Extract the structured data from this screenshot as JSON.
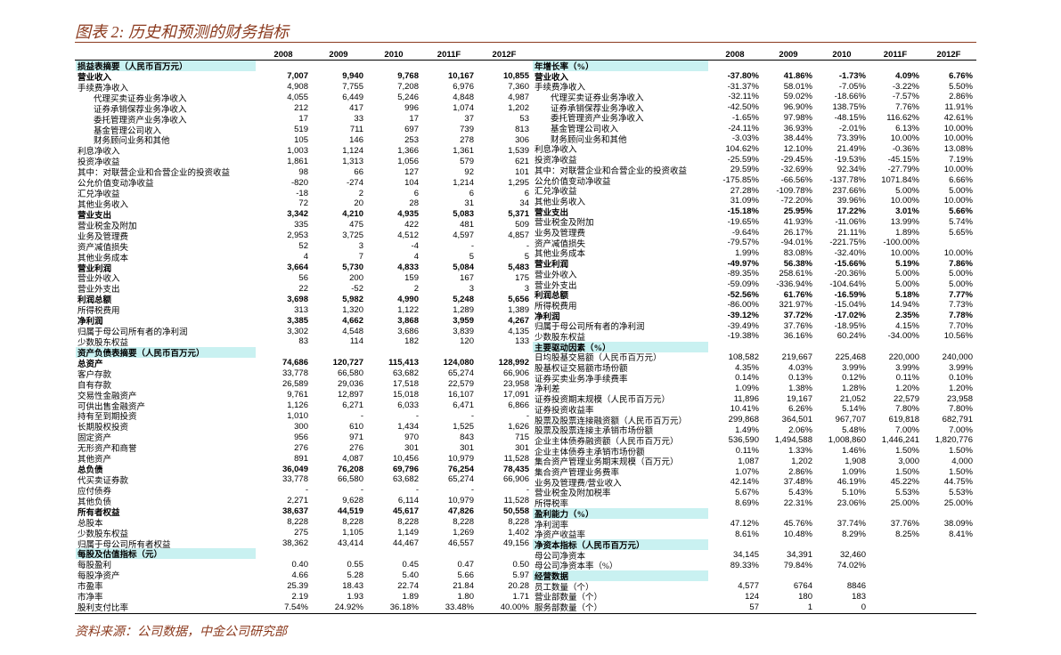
{
  "header": {
    "title": "图表 2: 历史和预测的财务指标"
  },
  "left": {
    "columns": [
      "2008",
      "2009",
      "2010",
      "2011F",
      "2012F"
    ],
    "rows": [
      {
        "label": "损益表摘要（人民币百万元）",
        "kind": "section",
        "values": []
      },
      {
        "label": "营业收入",
        "kind": "bold",
        "values": [
          "7,007",
          "9,940",
          "9,768",
          "10,167",
          "10,855"
        ]
      },
      {
        "label": "手续费净收入",
        "values": [
          "4,908",
          "7,755",
          "7,208",
          "6,976",
          "7,360"
        ]
      },
      {
        "label": "代理买卖证券业务净收入",
        "indent": 1,
        "values": [
          "4,055",
          "6,449",
          "5,246",
          "4,848",
          "4,987"
        ]
      },
      {
        "label": "证券承销保荐业务净收入",
        "indent": 1,
        "values": [
          "212",
          "417",
          "996",
          "1,074",
          "1,202"
        ]
      },
      {
        "label": "委托管理资产业务净收入",
        "indent": 1,
        "values": [
          "17",
          "33",
          "17",
          "37",
          "53"
        ]
      },
      {
        "label": "基金管理公司收入",
        "indent": 1,
        "values": [
          "519",
          "711",
          "697",
          "739",
          "813"
        ]
      },
      {
        "label": "财务顾问业务和其他",
        "indent": 1,
        "values": [
          "105",
          "146",
          "253",
          "278",
          "306"
        ]
      },
      {
        "label": "利息净收入",
        "values": [
          "1,003",
          "1,124",
          "1,366",
          "1,361",
          "1,539"
        ]
      },
      {
        "label": "投资净收益",
        "values": [
          "1,861",
          "1,313",
          "1,056",
          "579",
          "621"
        ]
      },
      {
        "label": "其中：对联营企业和合营企业的投资收益",
        "values": [
          "98",
          "66",
          "127",
          "92",
          "101"
        ]
      },
      {
        "label": "公允价值变动净收益",
        "values": [
          "-820",
          "-274",
          "104",
          "1,214",
          "1,295"
        ]
      },
      {
        "label": "汇兑净收益",
        "values": [
          "-18",
          "2",
          "6",
          "6",
          "6"
        ]
      },
      {
        "label": "其他业务收入",
        "values": [
          "72",
          "20",
          "28",
          "31",
          "34"
        ]
      },
      {
        "label": "营业支出",
        "kind": "bold",
        "values": [
          "3,342",
          "4,210",
          "4,935",
          "5,083",
          "5,371"
        ]
      },
      {
        "label": "营业税金及附加",
        "values": [
          "335",
          "475",
          "422",
          "481",
          "509"
        ]
      },
      {
        "label": "业务及管理费",
        "values": [
          "2,953",
          "3,725",
          "4,512",
          "4,597",
          "4,857"
        ]
      },
      {
        "label": "资产减值损失",
        "values": [
          "52",
          "3",
          "-4",
          "-",
          "-"
        ]
      },
      {
        "label": "其他业务成本",
        "values": [
          "4",
          "7",
          "4",
          "5",
          "5"
        ]
      },
      {
        "label": "营业利润",
        "kind": "bold",
        "values": [
          "3,664",
          "5,730",
          "4,833",
          "5,084",
          "5,483"
        ]
      },
      {
        "label": "营业外收入",
        "values": [
          "56",
          "200",
          "159",
          "167",
          "175"
        ]
      },
      {
        "label": "营业外支出",
        "values": [
          "22",
          "-52",
          "2",
          "3",
          "3"
        ]
      },
      {
        "label": "利润总额",
        "kind": "bold",
        "values": [
          "3,698",
          "5,982",
          "4,990",
          "5,248",
          "5,656"
        ]
      },
      {
        "label": "所得税费用",
        "values": [
          "313",
          "1,320",
          "1,122",
          "1,289",
          "1,389"
        ]
      },
      {
        "label": "净利润",
        "kind": "bold",
        "values": [
          "3,385",
          "4,662",
          "3,868",
          "3,959",
          "4,267"
        ]
      },
      {
        "label": "归属于母公司所有者的净利润",
        "values": [
          "3,302",
          "4,548",
          "3,686",
          "3,839",
          "4,135"
        ]
      },
      {
        "label": "少数股东权益",
        "values": [
          "83",
          "114",
          "182",
          "120",
          "133"
        ]
      },
      {
        "label": "资产负债表摘要（人民币百万元）",
        "kind": "section",
        "values": []
      },
      {
        "label": "总资产",
        "kind": "bold",
        "values": [
          "74,686",
          "120,727",
          "115,413",
          "124,080",
          "128,992"
        ]
      },
      {
        "label": "客户存款",
        "values": [
          "33,778",
          "66,580",
          "63,682",
          "65,274",
          "66,906"
        ]
      },
      {
        "label": "自有存款",
        "values": [
          "26,589",
          "29,036",
          "17,518",
          "22,579",
          "23,958"
        ]
      },
      {
        "label": "交易性金融资产",
        "values": [
          "9,761",
          "12,897",
          "15,018",
          "16,107",
          "17,091"
        ]
      },
      {
        "label": "可供出售金融资产",
        "values": [
          "1,126",
          "6,271",
          "6,033",
          "6,471",
          "6,866"
        ]
      },
      {
        "label": "持有至到期投资",
        "values": [
          "1,010",
          "-",
          "-",
          "-",
          "-"
        ]
      },
      {
        "label": "长期股权投资",
        "values": [
          "300",
          "610",
          "1,434",
          "1,525",
          "1,626"
        ]
      },
      {
        "label": "固定资产",
        "values": [
          "956",
          "971",
          "970",
          "843",
          "715"
        ]
      },
      {
        "label": "无形资产和商誉",
        "values": [
          "276",
          "276",
          "301",
          "301",
          "301"
        ]
      },
      {
        "label": "其他资产",
        "values": [
          "891",
          "4,087",
          "10,456",
          "10,979",
          "11,528"
        ]
      },
      {
        "label": "总负债",
        "kind": "bold",
        "values": [
          "36,049",
          "76,208",
          "69,796",
          "76,254",
          "78,435"
        ]
      },
      {
        "label": "代买卖证券款",
        "values": [
          "33,778",
          "66,580",
          "63,682",
          "65,274",
          "66,906"
        ]
      },
      {
        "label": "应付债券",
        "values": [
          "-",
          "-",
          "-",
          "-",
          "-"
        ]
      },
      {
        "label": "其他负债",
        "values": [
          "2,271",
          "9,628",
          "6,114",
          "10,979",
          "11,528"
        ]
      },
      {
        "label": "所有者权益",
        "kind": "bold",
        "values": [
          "38,637",
          "44,519",
          "45,617",
          "47,826",
          "50,558"
        ]
      },
      {
        "label": "总股本",
        "values": [
          "8,228",
          "8,228",
          "8,228",
          "8,228",
          "8,228"
        ]
      },
      {
        "label": "少数股东权益",
        "values": [
          "275",
          "1,105",
          "1,149",
          "1,269",
          "1,402"
        ]
      },
      {
        "label": "归属于母公司所有者权益",
        "values": [
          "38,362",
          "43,414",
          "44,467",
          "46,557",
          "49,156"
        ]
      },
      {
        "label": "每股及估值指标（元）",
        "kind": "section",
        "values": []
      },
      {
        "label": "每股盈利",
        "values": [
          "0.40",
          "0.55",
          "0.45",
          "0.47",
          "0.50"
        ]
      },
      {
        "label": "每股净资产",
        "values": [
          "4.66",
          "5.28",
          "5.40",
          "5.66",
          "5.97"
        ]
      },
      {
        "label": "市盈率",
        "values": [
          "25.39",
          "18.43",
          "22.74",
          "21.84",
          "20.28"
        ]
      },
      {
        "label": "市净率",
        "values": [
          "2.19",
          "1.93",
          "1.89",
          "1.80",
          "1.71"
        ]
      },
      {
        "label": "股利支付比率",
        "values": [
          "7.54%",
          "24.92%",
          "36.18%",
          "33.48%",
          "40.00%"
        ]
      }
    ]
  },
  "right": {
    "columns": [
      "2008",
      "2009",
      "2010",
      "2011F",
      "2012F"
    ],
    "rows": [
      {
        "label": "年增长率（%）",
        "kind": "section",
        "values": []
      },
      {
        "label": "营业收入",
        "kind": "bold",
        "values": [
          "-37.80%",
          "41.86%",
          "-1.73%",
          "4.09%",
          "6.76%"
        ]
      },
      {
        "label": "手续费净收入",
        "values": [
          "-31.37%",
          "58.01%",
          "-7.05%",
          "-3.22%",
          "5.50%"
        ]
      },
      {
        "label": "代理买卖证券业务净收入",
        "indent": 1,
        "values": [
          "-32.11%",
          "59.02%",
          "-18.66%",
          "-7.57%",
          "2.86%"
        ]
      },
      {
        "label": "证券承销保荐业务净收入",
        "indent": 1,
        "values": [
          "-42.50%",
          "96.90%",
          "138.75%",
          "7.76%",
          "11.91%"
        ]
      },
      {
        "label": "委托管理资产业务净收入",
        "indent": 1,
        "values": [
          "-1.65%",
          "97.98%",
          "-48.15%",
          "116.62%",
          "42.61%"
        ]
      },
      {
        "label": "基金管理公司收入",
        "indent": 1,
        "values": [
          "-24.11%",
          "36.93%",
          "-2.01%",
          "6.13%",
          "10.00%"
        ]
      },
      {
        "label": "财务顾问业务和其他",
        "indent": 1,
        "values": [
          "-3.03%",
          "38.44%",
          "73.39%",
          "10.00%",
          "10.00%"
        ]
      },
      {
        "label": "利息净收入",
        "values": [
          "104.62%",
          "12.10%",
          "21.49%",
          "-0.36%",
          "13.08%"
        ]
      },
      {
        "label": "投资净收益",
        "values": [
          "-25.59%",
          "-29.45%",
          "-19.53%",
          "-45.15%",
          "7.19%"
        ]
      },
      {
        "label": "其中：对联营企业和合营企业的投资收益",
        "values": [
          "29.59%",
          "-32.69%",
          "92.34%",
          "-27.79%",
          "10.00%"
        ]
      },
      {
        "label": "公允价值变动净收益",
        "values": [
          "-175.85%",
          "-66.56%",
          "-137.78%",
          "1071.84%",
          "6.66%"
        ]
      },
      {
        "label": "汇兑净收益",
        "values": [
          "27.28%",
          "-109.78%",
          "237.66%",
          "5.00%",
          "5.00%"
        ]
      },
      {
        "label": "其他业务收入",
        "values": [
          "31.09%",
          "-72.20%",
          "39.96%",
          "10.00%",
          "10.00%"
        ]
      },
      {
        "label": "营业支出",
        "kind": "bold",
        "values": [
          "-15.18%",
          "25.95%",
          "17.22%",
          "3.01%",
          "5.66%"
        ]
      },
      {
        "label": "营业税金及附加",
        "values": [
          "-19.65%",
          "41.93%",
          "-11.06%",
          "13.99%",
          "5.74%"
        ]
      },
      {
        "label": "业务及管理费",
        "values": [
          "-9.64%",
          "26.17%",
          "21.11%",
          "1.89%",
          "5.65%"
        ]
      },
      {
        "label": "资产减值损失",
        "values": [
          "-79.57%",
          "-94.01%",
          "-221.75%",
          "-100.00%"
        ]
      },
      {
        "label": "其他业务成本",
        "values": [
          "1.99%",
          "83.08%",
          "-32.40%",
          "10.00%",
          "10.00%"
        ]
      },
      {
        "label": "营业利润",
        "kind": "bold",
        "values": [
          "-49.97%",
          "56.38%",
          "-15.66%",
          "5.19%",
          "7.86%"
        ]
      },
      {
        "label": "营业外收入",
        "values": [
          "-89.35%",
          "258.61%",
          "-20.36%",
          "5.00%",
          "5.00%"
        ]
      },
      {
        "label": "营业外支出",
        "values": [
          "-59.09%",
          "-336.94%",
          "-104.64%",
          "5.00%",
          "5.00%"
        ]
      },
      {
        "label": "利润总额",
        "kind": "bold",
        "values": [
          "-52.56%",
          "61.76%",
          "-16.59%",
          "5.18%",
          "7.77%"
        ]
      },
      {
        "label": "所得税费用",
        "values": [
          "-86.00%",
          "321.97%",
          "-15.04%",
          "14.94%",
          "7.73%"
        ]
      },
      {
        "label": "净利润",
        "kind": "bold",
        "values": [
          "-39.12%",
          "37.72%",
          "-17.02%",
          "2.35%",
          "7.78%"
        ]
      },
      {
        "label": "归属于母公司所有者的净利润",
        "values": [
          "-39.49%",
          "37.76%",
          "-18.95%",
          "4.15%",
          "7.70%"
        ]
      },
      {
        "label": "少数股东权益",
        "values": [
          "-19.38%",
          "36.16%",
          "60.24%",
          "-34.00%",
          "10.56%"
        ]
      },
      {
        "label": "主要驱动因素（%）",
        "kind": "section",
        "values": []
      },
      {
        "label": "日均股基交易额（人民币百万元）",
        "values": [
          "108,582",
          "219,667",
          "225,468",
          "220,000",
          "240,000"
        ]
      },
      {
        "label": "股基权证交易额市场份额",
        "values": [
          "4.35%",
          "4.03%",
          "3.99%",
          "3.99%",
          "3.99%"
        ]
      },
      {
        "label": "证券买卖业务净手续费率",
        "values": [
          "0.14%",
          "0.13%",
          "0.12%",
          "0.11%",
          "0.10%"
        ]
      },
      {
        "label": "净利差",
        "values": [
          "1.09%",
          "1.38%",
          "1.28%",
          "1.20%",
          "1.20%"
        ]
      },
      {
        "label": "证券投资期末规模（人民币百万元）",
        "values": [
          "11,896",
          "19,167",
          "21,052",
          "22,579",
          "23,958"
        ]
      },
      {
        "label": "证券投资收益率",
        "values": [
          "10.41%",
          "6.26%",
          "5.14%",
          "7.80%",
          "7.80%"
        ]
      },
      {
        "label": "股票及股票连接融资额（人民币百万元）",
        "values": [
          "299,868",
          "364,501",
          "967,707",
          "619,818",
          "682,791"
        ]
      },
      {
        "label": "股票及股票连接主承销市场份额",
        "values": [
          "1.49%",
          "2.06%",
          "5.48%",
          "7.00%",
          "7.00%"
        ]
      },
      {
        "label": "企业主体债券融资额（人民币百万元）",
        "values": [
          "536,590",
          "1,494,588",
          "1,008,860",
          "1,446,241",
          "1,820,776"
        ]
      },
      {
        "label": "企业主体债券主承销市场份额",
        "values": [
          "0.11%",
          "1.33%",
          "1.46%",
          "1.50%",
          "1.50%"
        ]
      },
      {
        "label": "集合资产管理业务期末规模（百万元）",
        "values": [
          "1,087",
          "1,202",
          "1,908",
          "3,000",
          "4,000"
        ]
      },
      {
        "label": "集合资产管理业务费率",
        "values": [
          "1.07%",
          "2.86%",
          "1.09%",
          "1.50%",
          "1.50%"
        ]
      },
      {
        "label": "业务及管理费/营业收入",
        "values": [
          "42.14%",
          "37.48%",
          "46.19%",
          "45.22%",
          "44.75%"
        ]
      },
      {
        "label": "营业税金及附加税率",
        "values": [
          "5.67%",
          "5.43%",
          "5.10%",
          "5.53%",
          "5.53%"
        ]
      },
      {
        "label": "所得税率",
        "values": [
          "8.69%",
          "22.31%",
          "23.06%",
          "25.00%",
          "25.00%"
        ]
      },
      {
        "label": "盈利能力（%）",
        "kind": "section",
        "values": []
      },
      {
        "label": "净利润率",
        "values": [
          "47.12%",
          "45.76%",
          "37.74%",
          "37.76%",
          "38.09%"
        ]
      },
      {
        "label": "净资产收益率",
        "values": [
          "8.61%",
          "10.48%",
          "8.29%",
          "8.25%",
          "8.41%"
        ]
      },
      {
        "label": "净资本指标（人民币百万元）",
        "kind": "section",
        "values": []
      },
      {
        "label": "母公司净资本",
        "values": [
          "34,145",
          "34,391",
          "32,460"
        ]
      },
      {
        "label": "母公司净资本率（%）",
        "values": [
          "89.33%",
          "79.84%",
          "74.02%"
        ]
      },
      {
        "label": "经营数据",
        "kind": "section",
        "values": []
      },
      {
        "label": "员工数量（个）",
        "values": [
          "4,577",
          "6764",
          "8846"
        ]
      },
      {
        "label": "营业部数量（个）",
        "values": [
          "124",
          "180",
          "183"
        ]
      },
      {
        "label": "服务部数量（个）",
        "values": [
          "57",
          "1",
          "0"
        ]
      }
    ]
  },
  "footer": {
    "source": "资料来源：公司数据，中金公司研究部"
  }
}
